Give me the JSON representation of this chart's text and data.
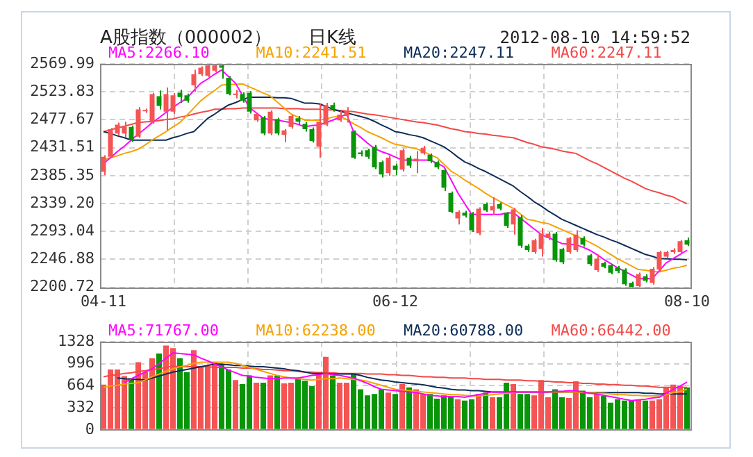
{
  "chart_data": [
    {
      "type": "candlestick",
      "title": "日K线",
      "subtitle": "A股指数（000002）",
      "annotations": [
        "2012-08-10 14:59:52"
      ],
      "categories": [
        "04-11",
        null,
        null,
        null,
        null,
        null,
        null,
        null,
        null,
        null,
        null,
        null,
        null,
        null,
        null,
        null,
        null,
        null,
        null,
        null,
        null,
        null,
        null,
        null,
        null,
        null,
        null,
        null,
        null,
        null,
        null,
        null,
        null,
        null,
        null,
        null,
        null,
        null,
        null,
        null,
        null,
        null,
        "06-12",
        null,
        null,
        null,
        null,
        null,
        null,
        null,
        null,
        null,
        null,
        null,
        null,
        null,
        null,
        null,
        null,
        null,
        null,
        null,
        null,
        null,
        null,
        null,
        null,
        null,
        null,
        null,
        null,
        null,
        null,
        null,
        null,
        null,
        null,
        null,
        null,
        null,
        null,
        null,
        null,
        null,
        "08-10"
      ],
      "ohlc": [
        [
          2391.6,
          2419.0,
          2385.9,
          2416.4
        ],
        [
          2416.4,
          2464.0,
          2414.0,
          2462.2
        ],
        [
          2454.8,
          2473.0,
          2452.0,
          2469.4
        ],
        [
          2454.8,
          2474.4,
          2448.0,
          2465.7
        ],
        [
          2465.7,
          2468.0,
          2441.0,
          2443.9
        ],
        [
          2449.7,
          2498.4,
          2447.6,
          2494.9
        ],
        [
          2491.5,
          2496.0,
          2489.0,
          2492.7
        ],
        [
          2473.1,
          2522.0,
          2471.0,
          2520.1
        ],
        [
          2516.6,
          2526.0,
          2494.9,
          2500.5
        ],
        [
          2491.1,
          2531.0,
          2460.0,
          2520.1
        ],
        [
          2491.1,
          2521.7,
          2487.4,
          2518.0
        ],
        [
          2522.3,
          2527.5,
          2505.8,
          2515.1
        ],
        [
          2518.0,
          2521.0,
          2506.0,
          2509.2
        ],
        [
          2534.7,
          2560.2,
          2523.8,
          2552.8
        ],
        [
          2552.8,
          2566.0,
          2550.0,
          2563.7
        ],
        [
          2550.6,
          2569.99,
          2548.0,
          2567.4
        ],
        [
          2558.7,
          2569.99,
          2556.0,
          2567.4
        ],
        [
          2567.4,
          2569.99,
          2545.6,
          2563.7
        ],
        [
          2547.1,
          2550.0,
          2518.0,
          2520.1
        ],
        [
          2518.5,
          2527.0,
          2513.0,
          2519.5
        ],
        [
          2520.1,
          2523.0,
          2506.0,
          2509.2
        ],
        [
          2522.3,
          2525.0,
          2488.0,
          2491.1
        ],
        [
          2476.6,
          2489.0,
          2474.0,
          2487.4
        ],
        [
          2481.8,
          2484.0,
          2452.0,
          2454.8
        ],
        [
          2454.8,
          2493.0,
          2452.0,
          2491.1
        ],
        [
          2478.7,
          2481.0,
          2452.0,
          2454.8
        ],
        [
          2452.6,
          2462.0,
          2440.4,
          2460.0
        ],
        [
          2465.7,
          2486.0,
          2463.0,
          2484.0
        ],
        [
          2480.2,
          2484.0,
          2470.0,
          2474.4
        ],
        [
          2470.9,
          2474.0,
          2458.0,
          2462.2
        ],
        [
          2462.2,
          2465.0,
          2440.0,
          2442.6
        ],
        [
          2433.0,
          2503.6,
          2414.9,
          2474.4
        ],
        [
          2469.4,
          2505.7,
          2467.0,
          2502.0
        ],
        [
          2502.0,
          2506.0,
          2491.0,
          2494.9
        ],
        [
          2476.6,
          2492.0,
          2474.0,
          2486.1
        ],
        [
          2484.0,
          2498.4,
          2473.1,
          2491.1
        ],
        [
          2458.5,
          2460.0,
          2413.0,
          2414.9
        ],
        [
          2423.6,
          2427.0,
          2417.0,
          2420.8
        ],
        [
          2427.3,
          2430.0,
          2413.0,
          2416.4
        ],
        [
          2433.0,
          2436.0,
          2396.0,
          2399.0
        ],
        [
          2407.7,
          2410.0,
          2382.2,
          2387.2
        ],
        [
          2389.4,
          2418.0,
          2385.0,
          2414.9
        ],
        [
          2401.8,
          2405.0,
          2385.9,
          2394.6
        ],
        [
          2395.3,
          2430.0,
          2392.0,
          2427.3
        ],
        [
          2414.9,
          2418.0,
          2398.0,
          2401.8
        ],
        [
          2409.0,
          2425.8,
          2389.4,
          2413.4
        ],
        [
          2422.1,
          2434.5,
          2420.0,
          2430.8
        ],
        [
          2419.9,
          2422.0,
          2406.0,
          2409.0
        ],
        [
          2407.7,
          2410.0,
          2396.0,
          2399.0
        ],
        [
          2394.6,
          2397.0,
          2360.0,
          2365.4
        ],
        [
          2356.7,
          2359.0,
          2323.0,
          2325.5
        ],
        [
          2314.6,
          2328.0,
          2304.4,
          2325.5
        ],
        [
          2324.0,
          2327.0,
          2316.0,
          2319.0
        ],
        [
          2322.7,
          2325.0,
          2292.0,
          2295.0
        ],
        [
          2290.0,
          2333.0,
          2287.0,
          2330.6
        ],
        [
          2338.0,
          2341.0,
          2325.0,
          2327.7
        ],
        [
          2327.7,
          2349.5,
          2320.5,
          2334.9
        ],
        [
          2338.0,
          2341.0,
          2328.0,
          2330.6
        ],
        [
          2324.0,
          2325.0,
          2299.0,
          2302.2
        ],
        [
          2304.4,
          2332.0,
          2287.8,
          2329.3
        ],
        [
          2316.8,
          2320.0,
          2266.0,
          2269.5
        ],
        [
          2269.5,
          2272.0,
          2259.0,
          2262.4
        ],
        [
          2258.7,
          2281.0,
          2256.0,
          2278.3
        ],
        [
          2263.9,
          2298.7,
          2251.5,
          2289.2
        ],
        [
          2282.0,
          2292.0,
          2279.0,
          2289.2
        ],
        [
          2289.2,
          2292.0,
          2243.0,
          2245.6
        ],
        [
          2263.9,
          2266.0,
          2239.0,
          2242.1
        ],
        [
          2258.7,
          2284.0,
          2256.0,
          2282.0
        ],
        [
          2262.4,
          2295.0,
          2259.0,
          2287.8
        ],
        [
          2282.0,
          2285.0,
          2268.0,
          2271.1
        ],
        [
          2253.6,
          2256.0,
          2236.0,
          2239.0
        ],
        [
          2229.0,
          2255.0,
          2226.0,
          2247.8
        ],
        [
          2240.6,
          2243.0,
          2232.0,
          2234.7
        ],
        [
          2236.9,
          2239.0,
          2222.0,
          2224.6
        ],
        [
          2233.4,
          2236.0,
          2224.0,
          2227.5
        ],
        [
          2229.7,
          2232.0,
          2203.0,
          2205.7
        ],
        [
          2207.9,
          2210.0,
          2200.72,
          2200.72
        ],
        [
          2202.5,
          2225.0,
          2201.5,
          2222.5
        ],
        [
          2218.8,
          2222.0,
          2209.0,
          2211.6
        ],
        [
          2207.9,
          2234.0,
          2205.0,
          2231.2
        ],
        [
          2229.7,
          2261.0,
          2227.0,
          2258.7
        ],
        [
          2251.5,
          2261.0,
          2249.0,
          2258.7
        ],
        [
          2258.7,
          2265.0,
          2256.0,
          2262.4
        ],
        [
          2258.7,
          2279.0,
          2256.0,
          2276.9
        ],
        [
          2278.3,
          2283.0,
          2269.0,
          2271.1
        ]
      ],
      "colors": [
        "#f45454",
        "#f45454",
        "#f45454",
        "#f45454",
        "#089508",
        "#f45454",
        "#f45454",
        "#f45454",
        "#089508",
        "#f45454",
        "#f45454",
        "#089508",
        "#089508",
        "#f45454",
        "#f45454",
        "#f45454",
        "#f45454",
        "#089508",
        "#089508",
        "#f45454",
        "#089508",
        "#089508",
        "#f45454",
        "#089508",
        "#f45454",
        "#089508",
        "#f45454",
        "#f45454",
        "#089508",
        "#089508",
        "#089508",
        "#f45454",
        "#f45454",
        "#089508",
        "#f45454",
        "#f45454",
        "#089508",
        "#089508",
        "#089508",
        "#089508",
        "#089508",
        "#f45454",
        "#089508",
        "#f45454",
        "#089508",
        "#f45454",
        "#f45454",
        "#089508",
        "#089508",
        "#089508",
        "#089508",
        "#f45454",
        "#089508",
        "#089508",
        "#f45454",
        "#089508",
        "#f45454",
        "#089508",
        "#089508",
        "#f45454",
        "#089508",
        "#089508",
        "#f45454",
        "#f45454",
        "#f45454",
        "#089508",
        "#089508",
        "#f45454",
        "#f45454",
        "#089508",
        "#089508",
        "#f45454",
        "#089508",
        "#089508",
        "#089508",
        "#089508",
        "#089508",
        "#f45454",
        "#089508",
        "#f45454",
        "#f45454",
        "#f45454",
        "#f45454",
        "#f45454",
        "#089508"
      ],
      "ylim": [
        2200.72,
        2569.99
      ],
      "yticks": [
        2200.72,
        2246.88,
        2293.04,
        {
          "value": 2339.2,
          "label": "2339.20"
        },
        2385.35,
        2431.51,
        2477.67,
        2523.83,
        2569.99
      ],
      "grid": true,
      "legend": "top",
      "series": [
        {
          "type": "line",
          "name": "MA5:2266.10",
          "color": "#ff00ff",
          "values": [
            2405,
            2415,
            2425,
            2434,
            2444,
            2454,
            2463,
            2473,
            2481,
            2490,
            2498,
            2506,
            2513,
            2526,
            2538,
            2545,
            2553,
            2560,
            2549,
            2538,
            2518,
            2498,
            2489,
            2480,
            2478,
            2477,
            2475,
            2473,
            2470,
            2466,
            2468,
            2469,
            2473,
            2477,
            2482,
            2487,
            2458,
            2449,
            2439,
            2430,
            2425,
            2421,
            2416,
            2411,
            2411,
            2411,
            2411,
            2411,
            2406,
            2400,
            2379,
            2357,
            2339,
            2321,
            2321,
            2321,
            2321,
            2321,
            2323,
            2324,
            2315,
            2306,
            2297,
            2288,
            2283,
            2278,
            2273,
            2272,
            2271,
            2267,
            2262,
            2255,
            2247,
            2240,
            2233,
            2227,
            2221,
            2215,
            2215,
            2215,
            2228,
            2241,
            2248,
            2255,
            2262
          ]
        },
        {
          "type": "line",
          "name": "MA10:2241.51",
          "color": "#f5a300",
          "values": [
            2411,
            2415,
            2418,
            2422,
            2425,
            2429,
            2436,
            2444,
            2451,
            2458,
            2466,
            2473,
            2485,
            2497,
            2509,
            2518,
            2526,
            2535,
            2536,
            2536,
            2537,
            2532,
            2527,
            2522,
            2517,
            2507,
            2497,
            2487,
            2482,
            2477,
            2477,
            2477,
            2479,
            2482,
            2484,
            2478,
            2471,
            2465,
            2458,
            2453,
            2448,
            2442,
            2437,
            2435,
            2432,
            2430,
            2425,
            2420,
            2415,
            2404,
            2393,
            2386,
            2378,
            2371,
            2364,
            2356,
            2349,
            2343,
            2337,
            2331,
            2322,
            2313,
            2311,
            2308,
            2306,
            2301,
            2296,
            2291,
            2286,
            2280,
            2275,
            2269,
            2262,
            2255,
            2248,
            2242,
            2236,
            2230,
            2229,
            2227,
            2226,
            2229,
            2232,
            2234,
            2237
          ]
        },
        {
          "type": "line",
          "name": "MA20:2247.11",
          "color": "#0d2c57",
          "values": [
            2458,
            2455,
            2451,
            2448,
            2444,
            2444,
            2444,
            2444,
            2444,
            2444,
            2448,
            2451,
            2455,
            2458,
            2469,
            2480,
            2487,
            2495,
            2502,
            2506,
            2511,
            2515,
            2515,
            2515,
            2515,
            2514,
            2514,
            2513,
            2509,
            2505,
            2505,
            2504,
            2500,
            2495,
            2492,
            2489,
            2486,
            2483,
            2480,
            2475,
            2469,
            2464,
            2458,
            2456,
            2453,
            2451,
            2448,
            2443,
            2438,
            2433,
            2425,
            2416,
            2408,
            2403,
            2397,
            2392,
            2386,
            2380,
            2374,
            2368,
            2359,
            2351,
            2342,
            2335,
            2327,
            2320,
            2313,
            2308,
            2303,
            2298,
            2293,
            2288,
            2284,
            2279,
            2275,
            2270,
            2265,
            2260,
            2255,
            2252,
            2248,
            2248,
            2247,
            2247,
            2246
          ]
        },
        {
          "type": "line",
          "name": "MA60:2247.11",
          "color": "#f34848",
          "values": [
            2458,
            2461,
            2464,
            2467,
            2470,
            2473,
            2474,
            2475,
            2476,
            2478,
            2479,
            2482,
            2484,
            2487,
            2490,
            2492,
            2495,
            2495,
            2496,
            2496,
            2497,
            2497,
            2497,
            2497,
            2497,
            2497,
            2496,
            2496,
            2496,
            2495,
            2495,
            2495,
            2494,
            2494,
            2493,
            2492,
            2491,
            2489,
            2487,
            2486,
            2484,
            2482,
            2480,
            2478,
            2476,
            2474,
            2473,
            2471,
            2469,
            2466,
            2463,
            2461,
            2458,
            2457,
            2455,
            2454,
            2452,
            2451,
            2449,
            2448,
            2444,
            2440,
            2437,
            2433,
            2431,
            2429,
            2426,
            2424,
            2422,
            2416,
            2410,
            2405,
            2399,
            2393,
            2387,
            2381,
            2376,
            2370,
            2364,
            2360,
            2357,
            2353,
            2350,
            2344,
            2339
          ]
        }
      ]
    },
    {
      "type": "bar",
      "tick_labels": "y",
      "categories": [
        null,
        null,
        null,
        null,
        null,
        null,
        null,
        null,
        null,
        null,
        null,
        null,
        null,
        null,
        null,
        null,
        null,
        null,
        null,
        null,
        null,
        null,
        null,
        null,
        null,
        null,
        null,
        null,
        null,
        null,
        null,
        null,
        null,
        null,
        null,
        null,
        null,
        null,
        null,
        null,
        null,
        null,
        null,
        null,
        null,
        null,
        null,
        null,
        null,
        null,
        null,
        null,
        null,
        null,
        null,
        null,
        null,
        null,
        null,
        null,
        null,
        null,
        null,
        null,
        null,
        null,
        null,
        null,
        null,
        null,
        null,
        null,
        null,
        null,
        null,
        null,
        null,
        null,
        null,
        null,
        null,
        null,
        null,
        null,
        null
      ],
      "ylim": [
        0,
        1328
      ],
      "yticks": [
        0,
        332,
        664,
        996,
        1328
      ],
      "grid": true,
      "legend": "top",
      "series": [
        {
          "type": "bar",
          "values": [
            680,
            910,
            910,
            810,
            780,
            1020,
            870,
            1080,
            1150,
            1270,
            1230,
            1080,
            870,
            1200,
            960,
            960,
            1020,
            990,
            910,
            750,
            690,
            820,
            710,
            710,
            820,
            820,
            700,
            710,
            780,
            740,
            660,
            870,
            1100,
            820,
            710,
            710,
            840,
            610,
            520,
            540,
            610,
            560,
            540,
            690,
            640,
            610,
            540,
            540,
            470,
            520,
            510,
            460,
            440,
            460,
            540,
            560,
            490,
            490,
            710,
            690,
            540,
            540,
            520,
            750,
            490,
            610,
            490,
            480,
            730,
            590,
            490,
            560,
            510,
            410,
            460,
            440,
            440,
            450,
            440,
            440,
            460,
            640,
            680,
            660,
            640
          ],
          "colors": [
            "#f45454",
            "#f45454",
            "#f45454",
            "#f45454",
            "#089508",
            "#f45454",
            "#f45454",
            "#f45454",
            "#089508",
            "#f45454",
            "#f45454",
            "#089508",
            "#089508",
            "#f45454",
            "#f45454",
            "#f45454",
            "#f45454",
            "#089508",
            "#089508",
            "#f45454",
            "#089508",
            "#089508",
            "#f45454",
            "#089508",
            "#f45454",
            "#089508",
            "#f45454",
            "#f45454",
            "#089508",
            "#089508",
            "#089508",
            "#f45454",
            "#f45454",
            "#089508",
            "#f45454",
            "#f45454",
            "#089508",
            "#089508",
            "#089508",
            "#089508",
            "#089508",
            "#f45454",
            "#089508",
            "#f45454",
            "#089508",
            "#f45454",
            "#f45454",
            "#089508",
            "#089508",
            "#089508",
            "#089508",
            "#f45454",
            "#089508",
            "#089508",
            "#f45454",
            "#089508",
            "#f45454",
            "#089508",
            "#089508",
            "#f45454",
            "#089508",
            "#089508",
            "#f45454",
            "#f45454",
            "#f45454",
            "#089508",
            "#089508",
            "#f45454",
            "#f45454",
            "#089508",
            "#089508",
            "#f45454",
            "#089508",
            "#089508",
            "#089508",
            "#089508",
            "#089508",
            "#f45454",
            "#089508",
            "#f45454",
            "#f45454",
            "#f45454",
            "#f45454",
            "#f45454",
            "#089508"
          ]
        },
        {
          "type": "line",
          "name": "MA5:71767.00",
          "color": "#ff00ff",
          "values": [
            null,
            null,
            null,
            710,
            770,
            820,
            870,
            920,
            1000,
            1080,
            1160,
            1150,
            1140,
            1130,
            1080,
            1040,
            990,
            950,
            900,
            860,
            820,
            810,
            790,
            780,
            770,
            770,
            780,
            780,
            780,
            800,
            820,
            830,
            850,
            830,
            820,
            800,
            780,
            740,
            700,
            650,
            610,
            600,
            590,
            580,
            570,
            560,
            540,
            520,
            510,
            500,
            500,
            500,
            490,
            510,
            530,
            550,
            570,
            570,
            570,
            570,
            570,
            570,
            570,
            570,
            570,
            580,
            580,
            590,
            590,
            570,
            550,
            540,
            520,
            500,
            480,
            460,
            440,
            450,
            460,
            480,
            490,
            550,
            610,
            660,
            720
          ]
        },
        {
          "type": "line",
          "name": "MA10:62238.00",
          "color": "#f5a300",
          "values": [
            640,
            660,
            670,
            690,
            700,
            710,
            750,
            800,
            840,
            880,
            920,
            950,
            970,
            1000,
            1020,
            1020,
            1020,
            1020,
            1020,
            1000,
            970,
            940,
            910,
            880,
            850,
            820,
            800,
            780,
            770,
            760,
            750,
            760,
            770,
            770,
            780,
            770,
            760,
            750,
            730,
            700,
            670,
            640,
            610,
            600,
            590,
            580,
            570,
            560,
            550,
            540,
            530,
            530,
            520,
            510,
            510,
            520,
            530,
            540,
            550,
            560,
            570,
            570,
            570,
            570,
            570,
            570,
            570,
            570,
            570,
            560,
            560,
            550,
            550,
            540,
            530,
            530,
            520,
            520,
            510,
            510,
            510,
            530,
            560,
            580,
            610
          ]
        },
        {
          "type": "line",
          "name": "MA20:60788.00",
          "color": "#0d2c57",
          "values": [
            null,
            null,
            780,
            770,
            760,
            760,
            750,
            780,
            810,
            840,
            870,
            890,
            910,
            930,
            950,
            970,
            990,
            990,
            980,
            970,
            970,
            960,
            950,
            950,
            940,
            930,
            920,
            900,
            890,
            870,
            850,
            850,
            850,
            840,
            840,
            840,
            840,
            820,
            790,
            770,
            750,
            740,
            720,
            710,
            700,
            690,
            680,
            660,
            640,
            630,
            610,
            600,
            600,
            590,
            590,
            580,
            570,
            570,
            570,
            570,
            570,
            570,
            570,
            570,
            570,
            570,
            570,
            570,
            570,
            560,
            560,
            560,
            560,
            560,
            560,
            560,
            560,
            560,
            550,
            550,
            540,
            540,
            540,
            540,
            540
          ]
        },
        {
          "type": "line",
          "name": "MA60:66442.00",
          "color": "#f34848",
          "values": [
            800,
            820,
            830,
            850,
            860,
            880,
            890,
            910,
            920,
            940,
            960,
            950,
            950,
            950,
            950,
            950,
            940,
            940,
            940,
            940,
            930,
            930,
            920,
            910,
            910,
            900,
            890,
            890,
            880,
            870,
            870,
            860,
            860,
            860,
            850,
            850,
            850,
            850,
            840,
            840,
            840,
            830,
            830,
            820,
            820,
            810,
            800,
            800,
            790,
            790,
            780,
            780,
            780,
            770,
            770,
            760,
            760,
            760,
            750,
            750,
            750,
            740,
            740,
            730,
            730,
            720,
            720,
            710,
            710,
            700,
            700,
            690,
            690,
            680,
            680,
            670,
            670,
            660,
            660,
            650,
            640,
            640,
            640,
            640,
            640
          ]
        }
      ]
    }
  ]
}
